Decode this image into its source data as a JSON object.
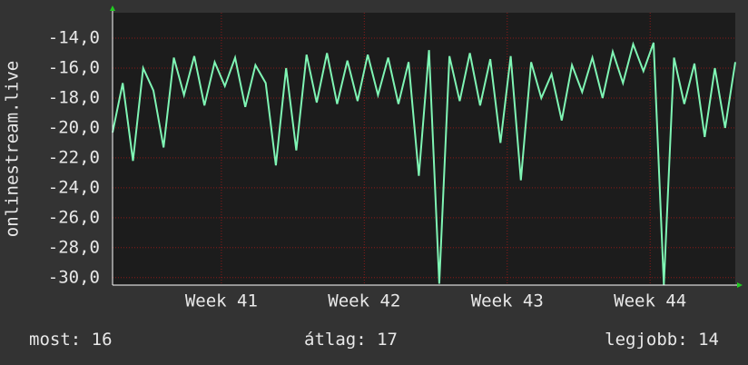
{
  "chart_data": {
    "type": "line",
    "y_label": "onlinestream.live",
    "x": [
      0,
      0.5,
      1,
      1.5,
      2,
      2.5,
      3,
      3.5,
      4,
      4.5,
      5,
      5.5,
      6,
      6.5,
      7,
      7.5,
      8,
      8.5,
      9,
      9.5,
      10,
      10.5,
      11,
      11.5,
      12,
      12.5,
      13,
      13.5,
      14,
      14.5,
      15,
      15.5,
      16,
      16.5,
      17,
      17.5,
      18,
      18.5,
      19,
      19.5,
      20,
      20.5,
      21,
      21.5,
      22,
      22.5,
      23,
      23.5,
      24,
      24.5,
      25,
      25.5,
      26,
      26.5,
      27,
      27.5,
      28,
      28.5,
      29,
      29.5,
      30,
      30.5
    ],
    "values": [
      -20.3,
      -17.0,
      -22.2,
      -16.0,
      -17.5,
      -21.3,
      -15.3,
      -17.8,
      -15.2,
      -18.5,
      -15.6,
      -17.2,
      -15.3,
      -18.6,
      -15.8,
      -17.0,
      -22.5,
      -16.0,
      -21.5,
      -15.1,
      -18.3,
      -15.0,
      -18.4,
      -15.5,
      -18.2,
      -15.1,
      -17.8,
      -15.3,
      -18.4,
      -15.6,
      -23.2,
      -14.8,
      -30.4,
      -15.2,
      -18.2,
      -15.0,
      -18.5,
      -15.4,
      -21.0,
      -15.2,
      -23.5,
      -15.6,
      -18.0,
      -16.4,
      -19.5,
      -15.8,
      -17.6,
      -15.3,
      -18.0,
      -14.9,
      -17.0,
      -14.4,
      -16.2,
      -14.3,
      -30.5,
      -15.3,
      -18.4,
      -15.7,
      -20.6,
      -16.0,
      -20.0,
      -15.6
    ],
    "color": "#7ff5b4",
    "xlim": [
      0,
      30.5
    ],
    "xticks": [
      {
        "value": 5.33,
        "label": "Week 41"
      },
      {
        "value": 12.33,
        "label": "Week 42"
      },
      {
        "value": 19.33,
        "label": "Week 43"
      },
      {
        "value": 26.33,
        "label": "Week 44"
      }
    ],
    "ylim": [
      -30.5,
      -12.3
    ],
    "yticks": [
      {
        "value": -14,
        "label": "-14,0"
      },
      {
        "value": -16,
        "label": "-16,0"
      },
      {
        "value": -18,
        "label": "-18,0"
      },
      {
        "value": -20,
        "label": "-20,0"
      },
      {
        "value": -22,
        "label": "-22,0"
      },
      {
        "value": -24,
        "label": "-24,0"
      },
      {
        "value": -26,
        "label": "-26,0"
      },
      {
        "value": -28,
        "label": "-28,0"
      },
      {
        "value": -30,
        "label": "-30,0"
      }
    ],
    "grid": true,
    "stats": [
      {
        "label": "most:",
        "value": 16
      },
      {
        "label": "átlag:",
        "value": 17
      },
      {
        "label": "legjobb:",
        "value": 14
      }
    ]
  }
}
